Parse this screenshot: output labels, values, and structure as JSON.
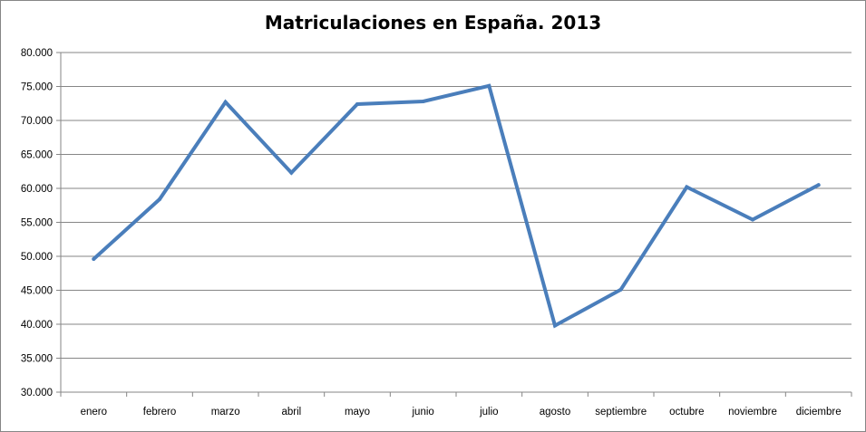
{
  "chart_data": {
    "type": "line",
    "title": "Matriculaciones en España. 2013",
    "xlabel": "",
    "ylabel": "",
    "categories": [
      "enero",
      "febrero",
      "marzo",
      "abril",
      "mayo",
      "junio",
      "julio",
      "agosto",
      "septiembre",
      "octubre",
      "noviembre",
      "diciembre"
    ],
    "series": [
      {
        "name": "Matriculaciones",
        "values": [
          49600,
          58400,
          72700,
          62300,
          72400,
          72800,
          75100,
          39800,
          45100,
          60200,
          55400,
          60500
        ]
      }
    ],
    "ylim": [
      30000,
      80000
    ],
    "yticks": [
      30000,
      35000,
      40000,
      45000,
      50000,
      55000,
      60000,
      65000,
      70000,
      75000,
      80000
    ],
    "ytick_labels": [
      "30.000",
      "35.000",
      "40.000",
      "45.000",
      "50.000",
      "55.000",
      "60.000",
      "65.000",
      "70.000",
      "75.000",
      "80.000"
    ],
    "grid": true,
    "legend": "none",
    "line_color": "#4a7ebb"
  }
}
